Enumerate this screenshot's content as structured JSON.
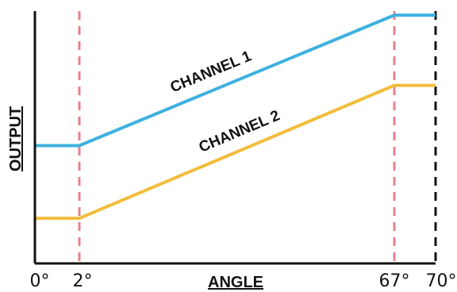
{
  "chart_data": {
    "type": "line",
    "xlabel": "ANGLE",
    "ylabel": "OUTPUT",
    "xlim": [
      0,
      70
    ],
    "x_ticks": [
      {
        "value": 0,
        "label": "0°"
      },
      {
        "value": 2,
        "label": "2°"
      },
      {
        "value": 67,
        "label": "67°"
      },
      {
        "value": 70,
        "label": "70°"
      }
    ],
    "reference_lines": [
      {
        "x": 2,
        "style": "dashed",
        "color": "#e8808c"
      },
      {
        "x": 67,
        "style": "dashed",
        "color": "#e8808c"
      },
      {
        "x": 70,
        "style": "dashed",
        "color": "#111111"
      }
    ],
    "series": [
      {
        "name": "CHANNEL 1",
        "color": "#3eb1df",
        "points": [
          {
            "x": 0,
            "y": 0.47
          },
          {
            "x": 2,
            "y": 0.47
          },
          {
            "x": 67,
            "y": 0.99
          },
          {
            "x": 70,
            "y": 0.99
          }
        ]
      },
      {
        "name": "CHANNEL 2",
        "color": "#f1bd3b",
        "points": [
          {
            "x": 0,
            "y": 0.18
          },
          {
            "x": 2,
            "y": 0.18
          },
          {
            "x": 67,
            "y": 0.71
          },
          {
            "x": 70,
            "y": 0.71
          }
        ]
      }
    ],
    "grid": false,
    "legend": "none"
  }
}
